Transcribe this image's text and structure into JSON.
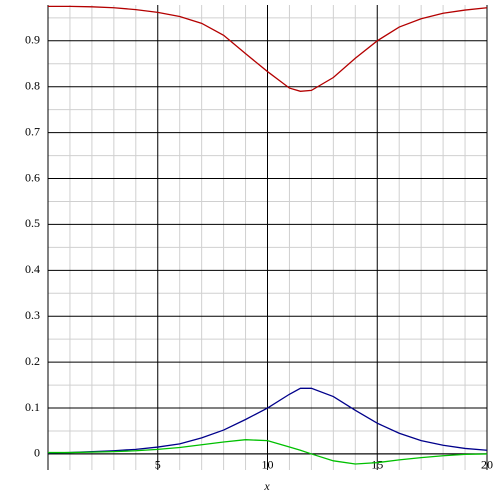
{
  "chart_data": {
    "type": "line",
    "xlabel": "x",
    "x": [
      0,
      1,
      2,
      3,
      4,
      5,
      6,
      7,
      8,
      9,
      10,
      11,
      11.5,
      12,
      13,
      14,
      15,
      16,
      17,
      18,
      19,
      20
    ],
    "series": [
      {
        "color": "#b40000",
        "values": [
          0.975,
          0.975,
          0.974,
          0.972,
          0.968,
          0.962,
          0.953,
          0.938,
          0.912,
          0.872,
          0.833,
          0.797,
          0.79,
          0.792,
          0.82,
          0.862,
          0.9,
          0.93,
          0.948,
          0.96,
          0.967,
          0.972
        ]
      },
      {
        "color": "#00008b",
        "values": [
          0.002,
          0.003,
          0.005,
          0.007,
          0.01,
          0.015,
          0.022,
          0.035,
          0.052,
          0.075,
          0.1,
          0.13,
          0.143,
          0.143,
          0.125,
          0.095,
          0.067,
          0.045,
          0.029,
          0.019,
          0.012,
          0.008
        ]
      },
      {
        "color": "#00c000",
        "values": [
          0.003,
          0.003,
          0.004,
          0.005,
          0.007,
          0.01,
          0.014,
          0.02,
          0.026,
          0.031,
          0.029,
          0.015,
          0.008,
          0.0,
          -0.015,
          -0.022,
          -0.019,
          -0.013,
          -0.008,
          -0.004,
          -0.001,
          0.0
        ]
      }
    ],
    "xlim": [
      0,
      20
    ],
    "ylim": [
      -0.035,
      0.978
    ],
    "xticks": [
      5,
      10,
      15,
      20
    ],
    "yticks": [
      0,
      0.1,
      0.2,
      0.3,
      0.4,
      0.5,
      0.6,
      0.7,
      0.8,
      0.9
    ],
    "grid": true
  }
}
